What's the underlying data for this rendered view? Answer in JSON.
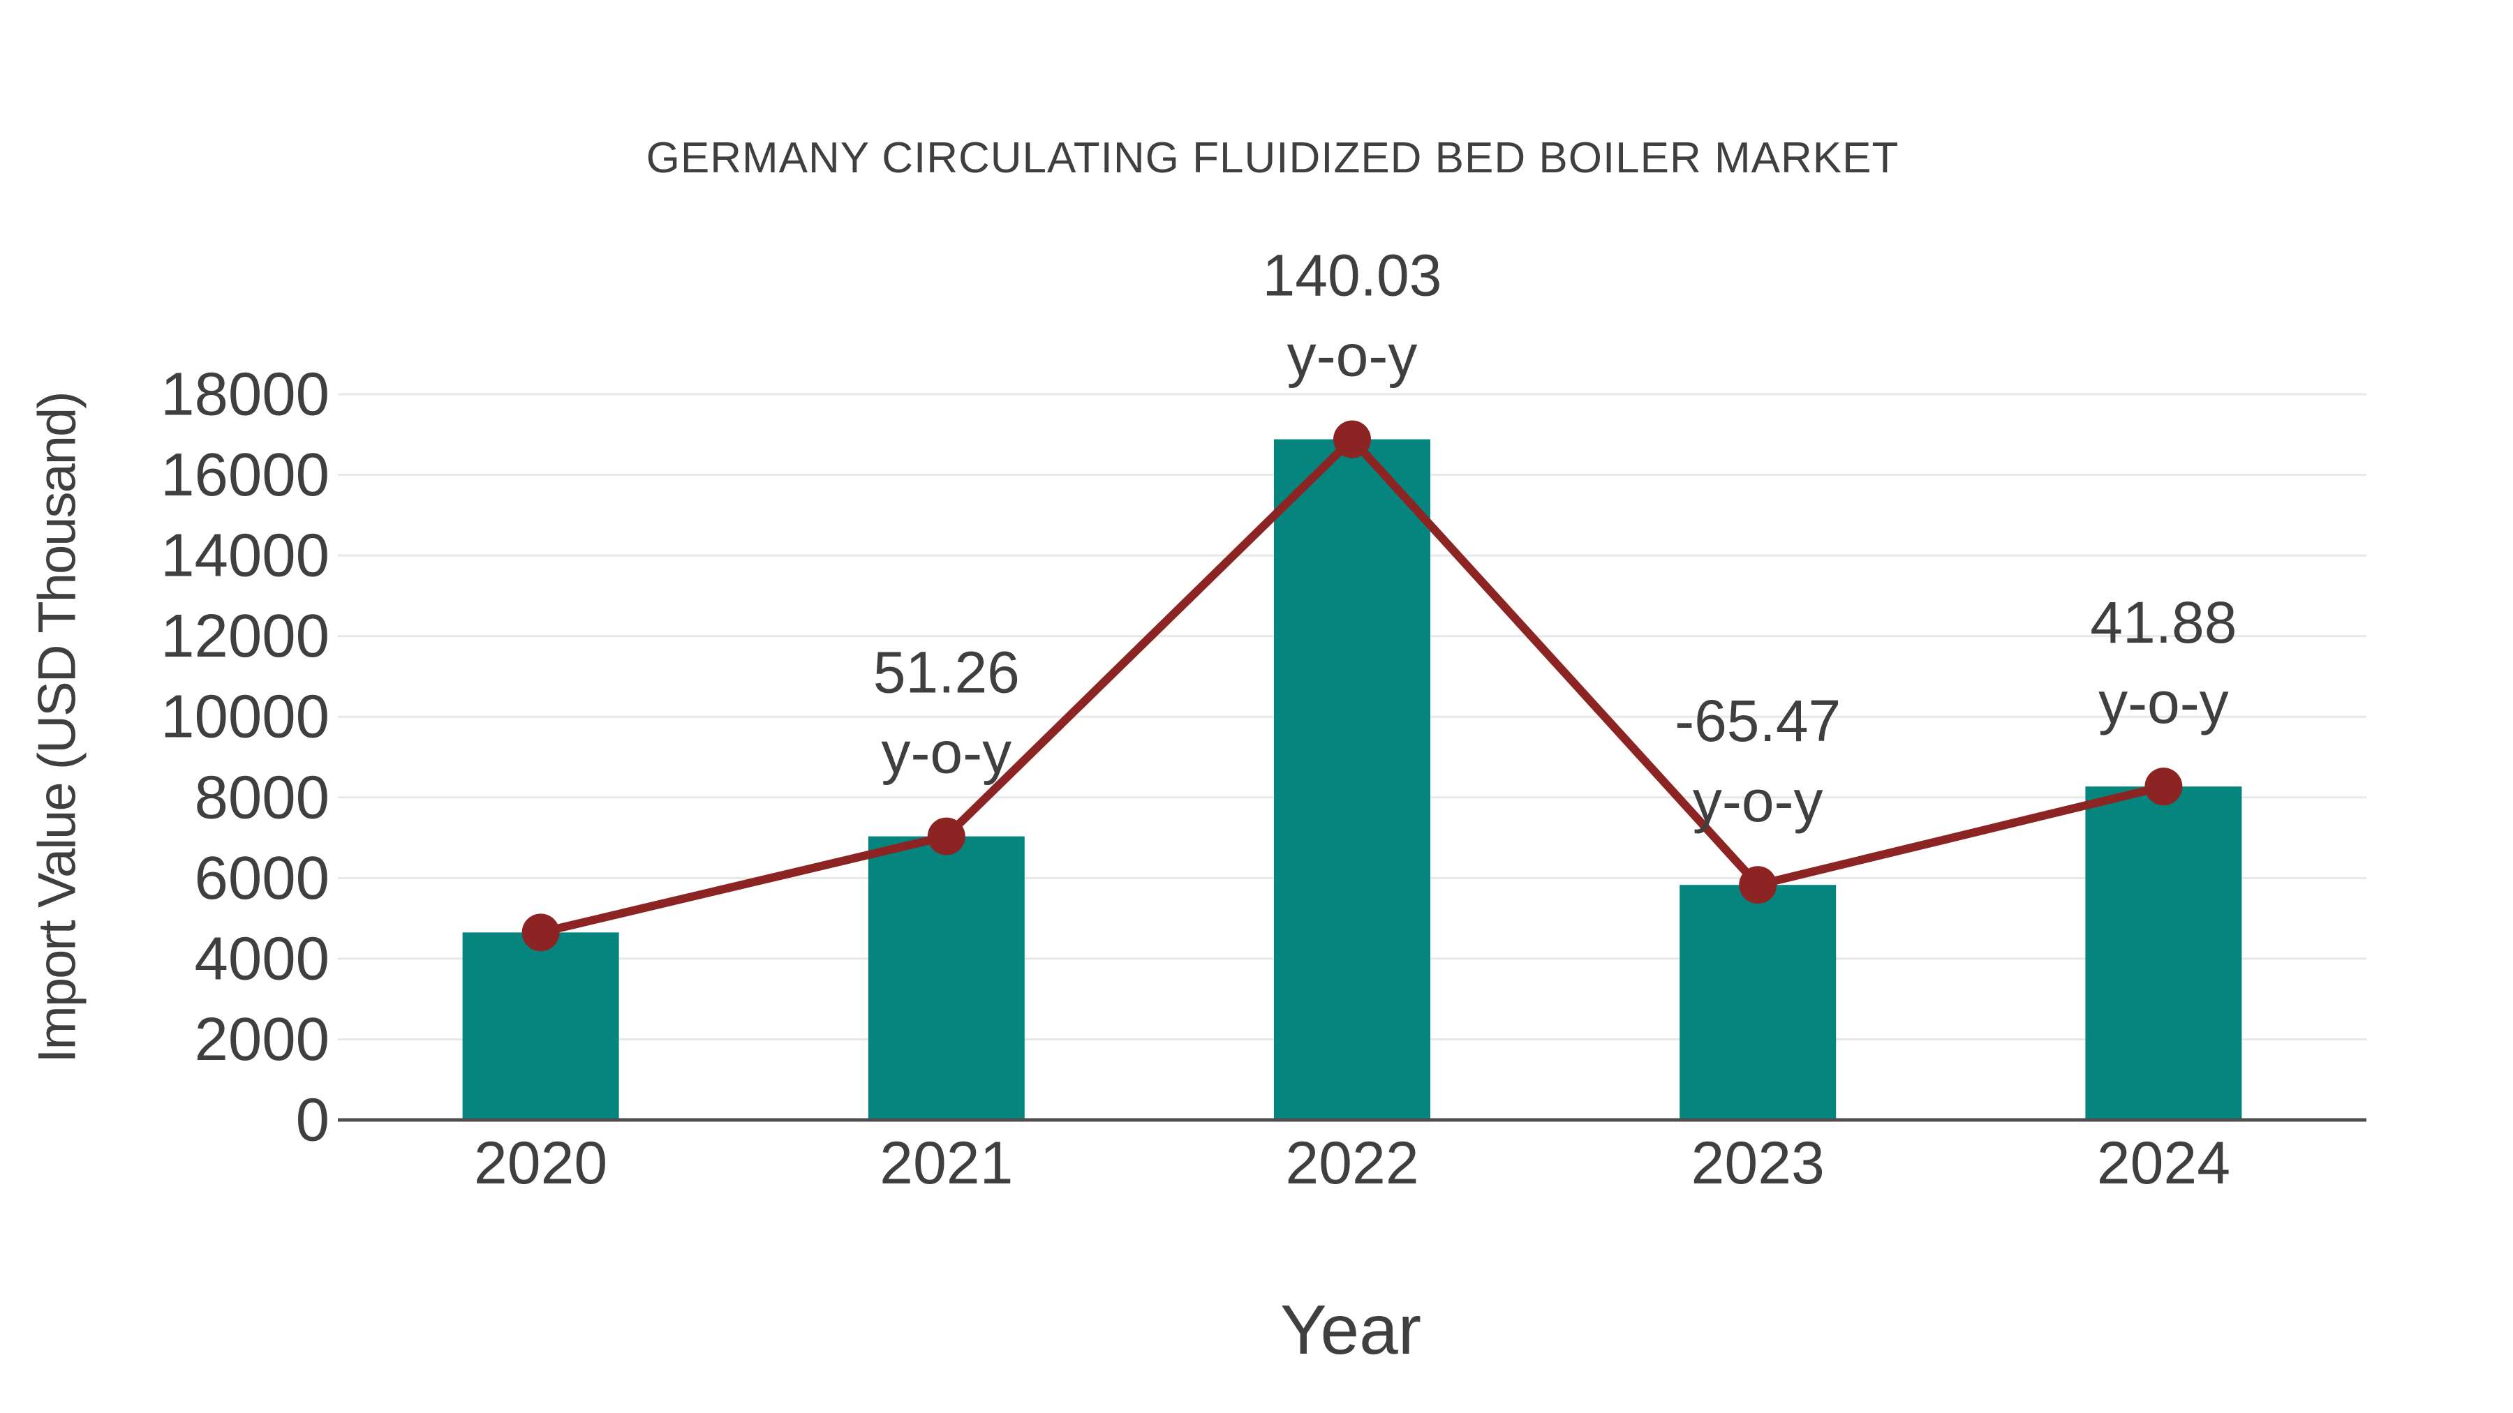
{
  "chart_data": {
    "type": "bar+line",
    "title": "GERMANY CIRCULATING FLUIDIZED BED BOILER MARKET",
    "xlabel": "Year",
    "ylabel": "Import Value (USD Thousand)",
    "categories": [
      "2020",
      "2021",
      "2022",
      "2023",
      "2024"
    ],
    "ylim": [
      0,
      18000
    ],
    "ytick_step": 2000,
    "grid": "horizontal",
    "legend": "none",
    "series": [
      {
        "name": "Import Value",
        "type": "bar",
        "color": "#05857E",
        "values": [
          4650,
          7034,
          16883,
          5829,
          8270
        ]
      },
      {
        "name": "Year-over-year trend",
        "type": "line",
        "color": "#8B2423",
        "values": [
          4650,
          7034,
          16883,
          5829,
          8270
        ],
        "point_labels": [
          "",
          "51.26",
          "140.03",
          "-65.47",
          "41.88"
        ],
        "point_label_suffix": "y-o-y"
      }
    ],
    "colors": {
      "bar": "#05857E",
      "line": "#8B2423",
      "text": "#3F3F3F",
      "axis": "#4D4D4D",
      "grid": "#E8E8E8",
      "background": "#FFFFFF"
    }
  }
}
